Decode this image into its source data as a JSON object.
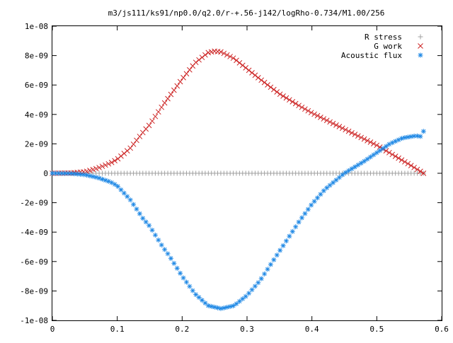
{
  "chart_data": {
    "type": "scatter",
    "title": "m3/js111/ks91/np0.0/q2.0/r-+.56-j142/logRho-0.734/M1.00/256",
    "xlabel": "",
    "ylabel": "",
    "xlim": [
      0,
      0.6
    ],
    "ylim": [
      -1e-08,
      1e-08
    ],
    "grid": false,
    "legend_position": "top-right",
    "x_ticks": [
      "0",
      "0.1",
      "0.2",
      "0.3",
      "0.4",
      "0.5",
      "0.6"
    ],
    "y_ticks": [
      "-1e-08",
      "-8e-09",
      "-6e-09",
      "-4e-09",
      "-2e-09",
      "0",
      "2e-09",
      "4e-09",
      "6e-09",
      "8e-09",
      "1e-08"
    ],
    "series": [
      {
        "name": "R stress",
        "marker": "plus",
        "color": "#a0a0a0",
        "x_range": [
          0,
          0.572
        ],
        "points": 120,
        "y_points": [
          [
            0,
            0
          ],
          [
            0.572,
            0
          ]
        ]
      },
      {
        "name": "G work",
        "marker": "cross",
        "color": "#cc2222",
        "x_range": [
          0,
          0.572
        ],
        "points": 120,
        "y_points": [
          [
            0.0,
            0.0
          ],
          [
            0.03,
            2e-11
          ],
          [
            0.05,
            1e-10
          ],
          [
            0.07,
            3.5e-10
          ],
          [
            0.09,
            7e-10
          ],
          [
            0.1,
            9.5e-10
          ],
          [
            0.12,
            1.7e-09
          ],
          [
            0.14,
            2.8e-09
          ],
          [
            0.15,
            3.3e-09
          ],
          [
            0.17,
            4.6e-09
          ],
          [
            0.18,
            5.2e-09
          ],
          [
            0.2,
            6.4e-09
          ],
          [
            0.22,
            7.5e-09
          ],
          [
            0.24,
            8.2e-09
          ],
          [
            0.25,
            8.3e-09
          ],
          [
            0.26,
            8.25e-09
          ],
          [
            0.28,
            7.8e-09
          ],
          [
            0.3,
            7.1e-09
          ],
          [
            0.32,
            6.4e-09
          ],
          [
            0.35,
            5.4e-09
          ],
          [
            0.38,
            4.6e-09
          ],
          [
            0.4,
            4.1e-09
          ],
          [
            0.45,
            3e-09
          ],
          [
            0.5,
            1.9e-09
          ],
          [
            0.55,
            6e-10
          ],
          [
            0.572,
            0.0
          ]
        ]
      },
      {
        "name": "Acoustic flux",
        "marker": "star",
        "color": "#1e88e5",
        "x_range": [
          0,
          0.572
        ],
        "points": 120,
        "y_points": [
          [
            0.0,
            0.0
          ],
          [
            0.03,
            -2e-11
          ],
          [
            0.05,
            -1e-10
          ],
          [
            0.07,
            -3e-10
          ],
          [
            0.09,
            -6e-10
          ],
          [
            0.1,
            -8.5e-10
          ],
          [
            0.12,
            -1.8e-09
          ],
          [
            0.14,
            -3.1e-09
          ],
          [
            0.15,
            -3.6e-09
          ],
          [
            0.17,
            -5e-09
          ],
          [
            0.18,
            -5.6e-09
          ],
          [
            0.2,
            -7e-09
          ],
          [
            0.22,
            -8.2e-09
          ],
          [
            0.24,
            -9e-09
          ],
          [
            0.26,
            -9.2e-09
          ],
          [
            0.28,
            -9e-09
          ],
          [
            0.3,
            -8.3e-09
          ],
          [
            0.32,
            -7.3e-09
          ],
          [
            0.35,
            -5.3e-09
          ],
          [
            0.38,
            -3.3e-09
          ],
          [
            0.4,
            -2.1e-09
          ],
          [
            0.42,
            -1.1e-09
          ],
          [
            0.45,
            0.0
          ],
          [
            0.48,
            8e-10
          ],
          [
            0.5,
            1.4e-09
          ],
          [
            0.52,
            2e-09
          ],
          [
            0.54,
            2.4e-09
          ],
          [
            0.56,
            2.55e-09
          ],
          [
            0.568,
            2.5e-09
          ],
          [
            0.572,
            2.85e-09
          ]
        ]
      }
    ]
  }
}
